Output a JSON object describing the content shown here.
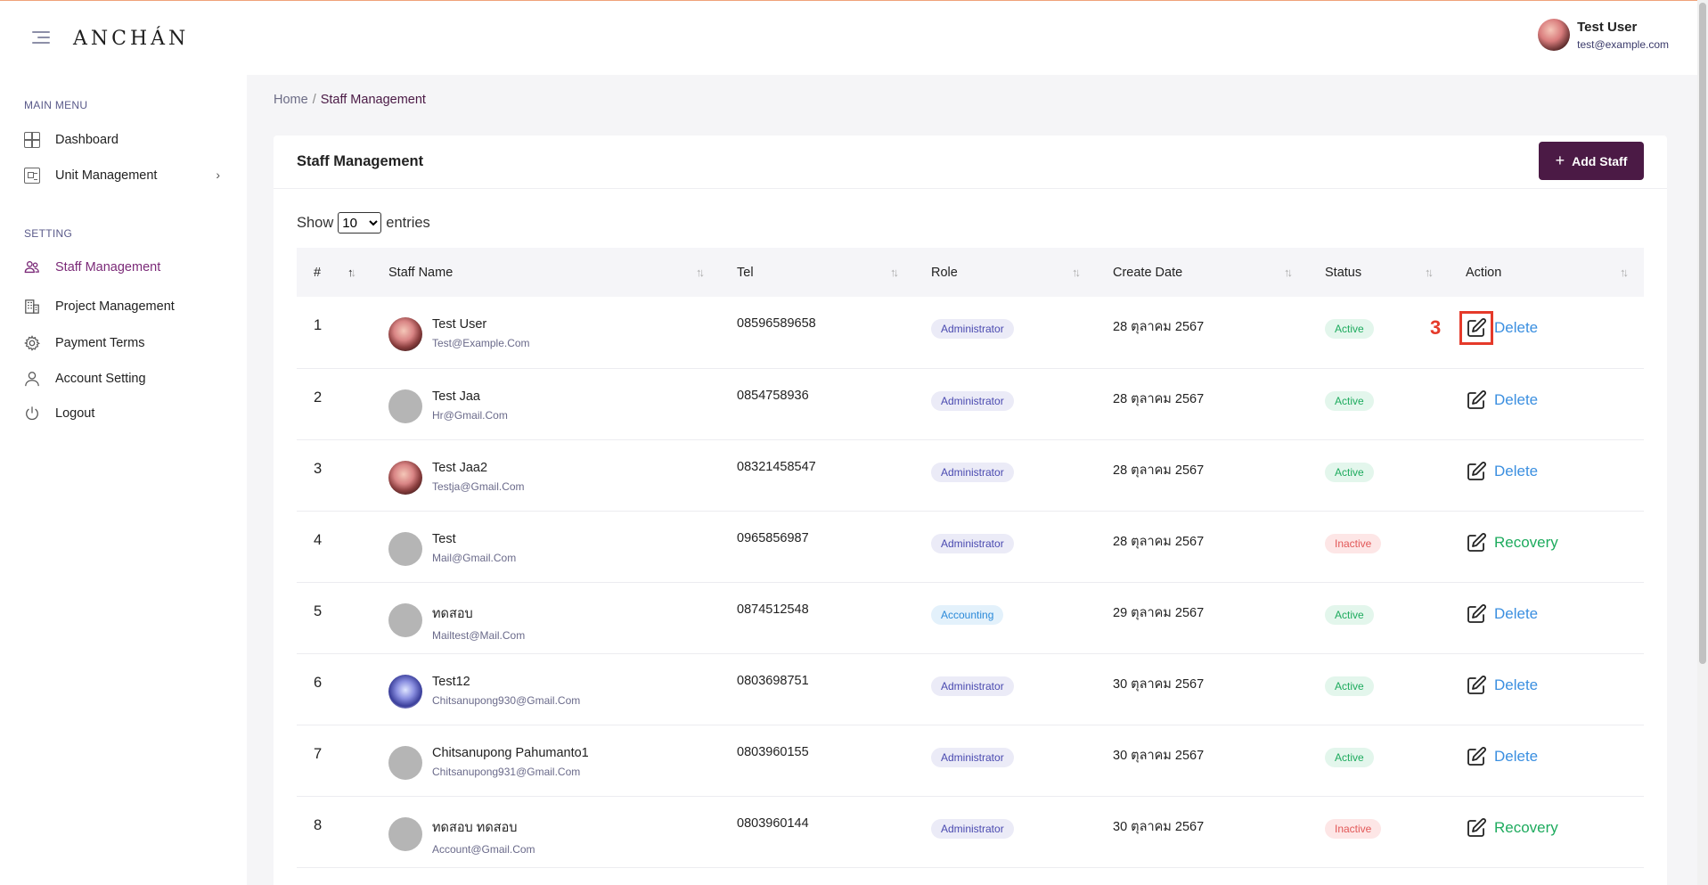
{
  "header": {
    "logo": "ANCHÁN",
    "user": {
      "name": "Test User",
      "email": "test@example.com"
    }
  },
  "sidebar": {
    "main_title": "MAIN MENU",
    "main_items": [
      {
        "label": "Dashboard",
        "icon": "dashboard-icon"
      },
      {
        "label": "Unit Management",
        "icon": "unit-icon",
        "has_submenu": true
      }
    ],
    "setting_title": "SETTING",
    "setting_items": [
      {
        "label": "Staff Management",
        "icon": "users-icon",
        "active": true
      },
      {
        "label": "Project Management",
        "icon": "building-icon"
      },
      {
        "label": "Payment Terms",
        "icon": "gear-icon"
      },
      {
        "label": "Account Setting",
        "icon": "user-icon"
      },
      {
        "label": "Logout",
        "icon": "power-icon"
      }
    ]
  },
  "breadcrumb": {
    "home": "Home",
    "current": "Staff Management"
  },
  "card": {
    "title": "Staff Management",
    "add_button": "Add Staff",
    "show_label": "Show",
    "entries_value": "10",
    "entries_label": "entries"
  },
  "table": {
    "columns": [
      "#",
      "Staff Name",
      "Tel",
      "Role",
      "Create Date",
      "Status",
      "Action"
    ],
    "rows": [
      {
        "num": "1",
        "name": "Test User",
        "email": "Test@Example.Com",
        "tel": "08596589658",
        "role": "Administrator",
        "date": "28 ตุลาคม 2567",
        "status": "Active",
        "action": "Delete",
        "avatar": "photo1"
      },
      {
        "num": "2",
        "name": "Test Jaa",
        "email": "Hr@Gmail.Com",
        "tel": "0854758936",
        "role": "Administrator",
        "date": "28 ตุลาคม 2567",
        "status": "Active",
        "action": "Delete",
        "avatar": "placeholder"
      },
      {
        "num": "3",
        "name": "Test Jaa2",
        "email": "Testja@Gmail.Com",
        "tel": "08321458547",
        "role": "Administrator",
        "date": "28 ตุลาคม 2567",
        "status": "Active",
        "action": "Delete",
        "avatar": "photo1"
      },
      {
        "num": "4",
        "name": "Test",
        "email": "Mail@Gmail.Com",
        "tel": "0965856987",
        "role": "Administrator",
        "date": "28 ตุลาคม 2567",
        "status": "Inactive",
        "action": "Recovery",
        "avatar": "placeholder"
      },
      {
        "num": "5",
        "name": "ทดสอบ",
        "email": "Mailtest@Mail.Com",
        "tel": "0874512548",
        "role": "Accounting",
        "date": "29 ตุลาคม 2567",
        "status": "Active",
        "action": "Delete",
        "avatar": "placeholder"
      },
      {
        "num": "6",
        "name": "Test12",
        "email": "Chitsanupong930@Gmail.Com",
        "tel": "0803698751",
        "role": "Administrator",
        "date": "30 ตุลาคม 2567",
        "status": "Active",
        "action": "Delete",
        "avatar": "photo2"
      },
      {
        "num": "7",
        "name": "Chitsanupong Pahumanto1",
        "email": "Chitsanupong931@Gmail.Com",
        "tel": "0803960155",
        "role": "Administrator",
        "date": "30 ตุลาคม 2567",
        "status": "Active",
        "action": "Delete",
        "avatar": "placeholder"
      },
      {
        "num": "8",
        "name": "ทดสอบ ทดสอบ",
        "email": "Account@Gmail.Com",
        "tel": "0803960144",
        "role": "Administrator",
        "date": "30 ตุลาคม 2567",
        "status": "Inactive",
        "action": "Recovery",
        "avatar": "placeholder"
      }
    ]
  },
  "annotation": {
    "step_number": "3",
    "color": "#e53a2a"
  },
  "colors": {
    "brand": "#4b1a45",
    "active_menu": "#7b2a78",
    "delete_link": "#3b8fe0",
    "recovery_link": "#1eab5e"
  }
}
